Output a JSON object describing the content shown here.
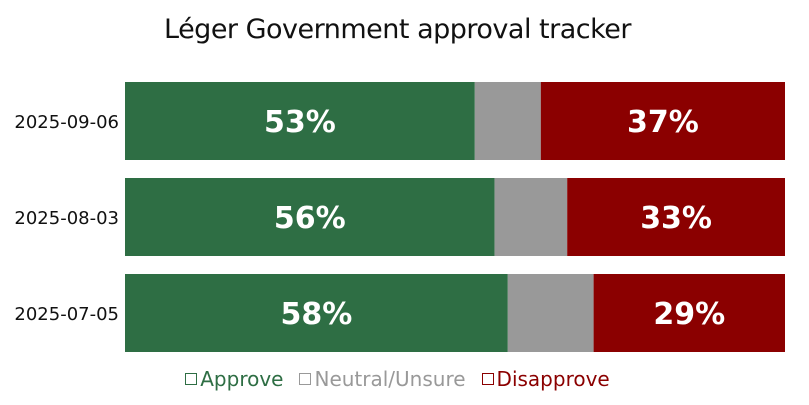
{
  "chart_data": {
    "type": "bar",
    "orientation": "horizontal",
    "stacked": true,
    "title": "Léger Government approval tracker",
    "categories": [
      "2025-09-06",
      "2025-08-03",
      "2025-07-05"
    ],
    "series": [
      {
        "name": "Approve",
        "values": [
          53,
          56,
          58
        ],
        "color": "#2e6e44",
        "labels": [
          "53%",
          "56%",
          "58%"
        ]
      },
      {
        "name": "Neutral/Unsure",
        "values": [
          10,
          11,
          13
        ],
        "color": "#999999",
        "labels": [
          "",
          "",
          ""
        ]
      },
      {
        "name": "Disapprove",
        "values": [
          37,
          33,
          29
        ],
        "color": "#8b0000",
        "labels": [
          "37%",
          "33%",
          "29%"
        ]
      }
    ],
    "xlim": [
      0,
      100
    ],
    "grid": false,
    "legend": "bottom"
  }
}
